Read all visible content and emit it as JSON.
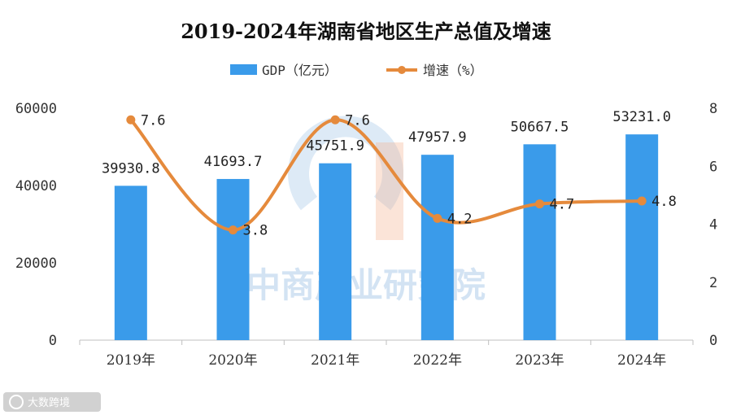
{
  "chart_data": {
    "type": "bar+line",
    "title": "2019-2024年湖南省地区生产总值及增速",
    "categories": [
      "2019年",
      "2020年",
      "2021年",
      "2022年",
      "2023年",
      "2024年"
    ],
    "series": [
      {
        "name": "GDP（亿元）",
        "type": "bar",
        "axis": "left",
        "values": [
          39930.8,
          41693.7,
          45751.9,
          47957.9,
          50667.5,
          53231.0
        ],
        "labels": [
          "39930.8",
          "41693.7",
          "45751.9",
          "47957.9",
          "50667.5",
          "53231.0"
        ]
      },
      {
        "name": "增速（%）",
        "type": "line",
        "axis": "right",
        "values": [
          7.6,
          3.8,
          7.6,
          4.2,
          4.7,
          4.8
        ],
        "labels": [
          "7.6",
          "3.8",
          "7.6",
          "4.2",
          "4.7",
          "4.8"
        ]
      }
    ],
    "y_left": {
      "ylim": [
        0,
        60000
      ],
      "ticks": [
        "0",
        "20000",
        "40000",
        "60000"
      ]
    },
    "y_right": {
      "ylim": [
        0,
        8
      ],
      "ticks": [
        "0",
        "2",
        "4",
        "6",
        "8"
      ]
    },
    "legend": "top-center",
    "grid": false
  },
  "colors": {
    "bar": "#3a9bea",
    "line": "#e58a3c",
    "watermark": "#9fc3e6"
  },
  "watermark": {
    "text": "中商产业研究院"
  },
  "corner_logo": {
    "text": "大数跨境"
  }
}
